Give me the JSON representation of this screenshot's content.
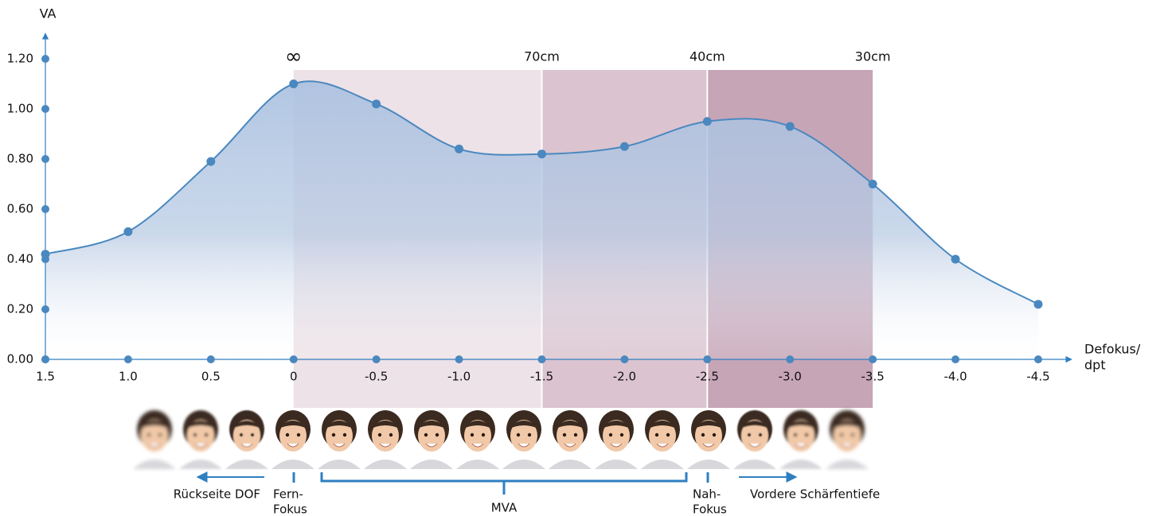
{
  "chart_data": {
    "type": "line",
    "y_label": "VA",
    "x_label": [
      "Defokus/",
      "dpt"
    ],
    "x": [
      1.5,
      1,
      0.5,
      0,
      -0.5,
      -1,
      -1.5,
      -2,
      -2.5,
      -3,
      -3.5,
      -4,
      -4.5
    ],
    "values": [
      0.42,
      0.51,
      0.79,
      1.1,
      1.02,
      0.84,
      0.82,
      0.85,
      0.95,
      0.93,
      0.7,
      0.4,
      0.22
    ],
    "color": "#4a88bf",
    "xlim": [
      1.5,
      -4.5
    ],
    "xticks": [
      1.5,
      {
        "value": 1,
        "label": "1.0"
      },
      0.5,
      0,
      -0.5,
      {
        "value": -1,
        "label": "-1.0"
      },
      -1.5,
      {
        "value": -2,
        "label": "-2.0"
      },
      -2.5,
      {
        "value": -3,
        "label": "-3.0"
      },
      -3.5,
      {
        "value": -4,
        "label": "-4.0"
      },
      -4.5
    ],
    "ylim": [
      0,
      1.2
    ],
    "yticks": [
      {
        "value": 0,
        "label": "0.00"
      },
      {
        "value": 0.2,
        "label": "0.20"
      },
      {
        "value": 0.4,
        "label": "0.40"
      },
      {
        "value": 0.6,
        "label": "0.60"
      },
      {
        "value": 0.8,
        "label": "0.80"
      },
      {
        "value": 1,
        "label": "1.00"
      },
      {
        "value": 1.2,
        "label": "1.20"
      }
    ],
    "zones": [
      {
        "from": 0,
        "to": -1.5,
        "color": "#ede2e7"
      },
      {
        "from": -1.5,
        "to": -2.5,
        "color": "#dbc4cf"
      },
      {
        "from": -2.5,
        "to": -3.5,
        "color": "#c6a5b7"
      }
    ],
    "distance_labels": [
      {
        "x": 0,
        "label": "∞"
      },
      {
        "x": -1.5,
        "label": "70cm"
      },
      {
        "x": -2.5,
        "label": "40cm"
      },
      {
        "x": -3.5,
        "label": "30cm"
      }
    ],
    "annotations": {
      "back_dof": "Rückseite DOF",
      "far_focus": [
        "Fern-",
        "Fokus"
      ],
      "mva": "MVA",
      "near_focus": [
        "Nah-",
        "Fokus"
      ],
      "front_dof": "Vordere Schärfentiefe"
    }
  }
}
